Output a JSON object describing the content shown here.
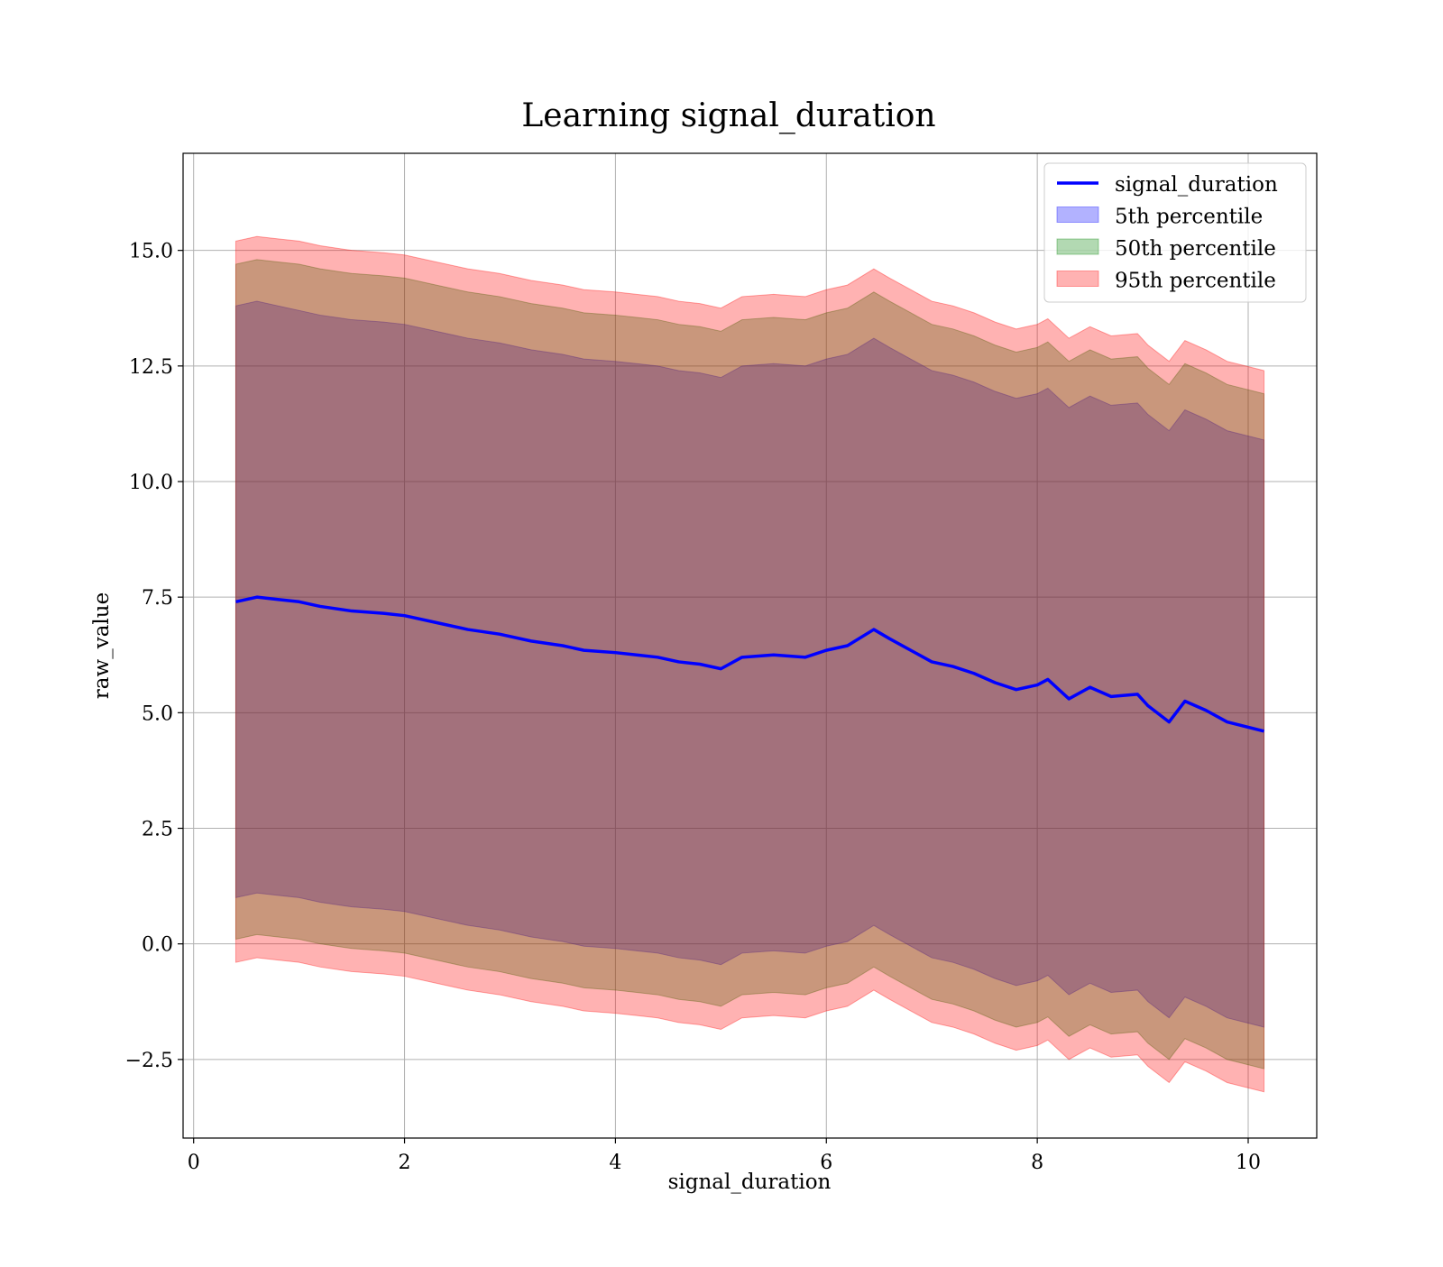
{
  "colors": {
    "mean_line": "#0000ff",
    "band_5th": "#0000ff",
    "band_50th": "#008000",
    "band_95th": "#ff0000",
    "grid": "#b0b0b0"
  },
  "chart_data": {
    "type": "line",
    "title": "Learning signal_duration",
    "xlabel": "signal_duration",
    "ylabel": "raw_value",
    "xlim": [
      -0.1,
      10.65
    ],
    "ylim": [
      -4.2,
      17.1
    ],
    "x_ticks": [
      0,
      2,
      4,
      6,
      8,
      10
    ],
    "x_tick_labels": [
      "0",
      "2",
      "4",
      "6",
      "8",
      "10"
    ],
    "y_ticks": [
      -2.5,
      0.0,
      2.5,
      5.0,
      7.5,
      10.0,
      12.5,
      15.0
    ],
    "y_tick_labels": [
      "−2.5",
      "0.0",
      "2.5",
      "5.0",
      "7.5",
      "10.0",
      "12.5",
      "15.0"
    ],
    "grid": true,
    "legend_position": "top-right",
    "legend": [
      "signal_duration",
      "5th percentile",
      "50th percentile",
      "95th percentile"
    ],
    "x": [
      0.4,
      0.6,
      0.8,
      1.0,
      1.2,
      1.5,
      1.8,
      2.0,
      2.3,
      2.6,
      2.9,
      3.2,
      3.5,
      3.7,
      4.0,
      4.2,
      4.4,
      4.6,
      4.8,
      5.0,
      5.2,
      5.5,
      5.8,
      6.0,
      6.2,
      6.45,
      6.6,
      6.8,
      7.0,
      7.2,
      7.4,
      7.6,
      7.8,
      8.0,
      8.1,
      8.3,
      8.5,
      8.7,
      8.95,
      9.05,
      9.25,
      9.4,
      9.6,
      9.8,
      10.15
    ],
    "series": [
      {
        "name": "signal_duration",
        "values": [
          7.4,
          7.5,
          7.45,
          7.4,
          7.3,
          7.2,
          7.15,
          7.1,
          6.95,
          6.8,
          6.7,
          6.55,
          6.45,
          6.35,
          6.3,
          6.25,
          6.2,
          6.1,
          6.05,
          5.95,
          6.2,
          6.25,
          6.2,
          6.35,
          6.45,
          6.8,
          6.6,
          6.35,
          6.1,
          6.0,
          5.85,
          5.65,
          5.5,
          5.6,
          5.72,
          5.3,
          5.55,
          5.35,
          5.4,
          5.15,
          4.8,
          5.25,
          5.05,
          4.8,
          4.6
        ]
      },
      {
        "name": "5th percentile",
        "upper": [
          13.8,
          13.9,
          13.8,
          13.7,
          13.6,
          13.5,
          13.45,
          13.4,
          13.25,
          13.1,
          13.0,
          12.85,
          12.75,
          12.65,
          12.6,
          12.55,
          12.5,
          12.4,
          12.35,
          12.25,
          12.5,
          12.55,
          12.5,
          12.65,
          12.75,
          13.1,
          12.9,
          12.65,
          12.4,
          12.3,
          12.15,
          11.95,
          11.8,
          11.9,
          12.02,
          11.6,
          11.85,
          11.65,
          11.7,
          11.45,
          11.1,
          11.55,
          11.35,
          11.1,
          10.9
        ],
        "lower": [
          1.0,
          1.1,
          1.05,
          1.0,
          0.9,
          0.8,
          0.75,
          0.7,
          0.55,
          0.4,
          0.3,
          0.15,
          0.05,
          -0.05,
          -0.1,
          -0.15,
          -0.2,
          -0.3,
          -0.35,
          -0.45,
          -0.2,
          -0.15,
          -0.2,
          -0.05,
          0.05,
          0.4,
          0.2,
          -0.05,
          -0.3,
          -0.4,
          -0.55,
          -0.75,
          -0.9,
          -0.8,
          -0.68,
          -1.1,
          -0.85,
          -1.05,
          -1.0,
          -1.25,
          -1.6,
          -1.15,
          -1.35,
          -1.6,
          -1.8
        ]
      },
      {
        "name": "50th percentile",
        "upper": [
          14.7,
          14.8,
          14.75,
          14.7,
          14.6,
          14.5,
          14.45,
          14.4,
          14.25,
          14.1,
          14.0,
          13.85,
          13.75,
          13.65,
          13.6,
          13.55,
          13.5,
          13.4,
          13.35,
          13.25,
          13.5,
          13.55,
          13.5,
          13.65,
          13.75,
          14.1,
          13.9,
          13.65,
          13.4,
          13.3,
          13.15,
          12.95,
          12.8,
          12.9,
          13.02,
          12.6,
          12.85,
          12.65,
          12.7,
          12.45,
          12.1,
          12.55,
          12.35,
          12.1,
          11.9
        ],
        "lower": [
          0.1,
          0.2,
          0.15,
          0.1,
          0.0,
          -0.1,
          -0.15,
          -0.2,
          -0.35,
          -0.5,
          -0.6,
          -0.75,
          -0.85,
          -0.95,
          -1.0,
          -1.05,
          -1.1,
          -1.2,
          -1.25,
          -1.35,
          -1.1,
          -1.05,
          -1.1,
          -0.95,
          -0.85,
          -0.5,
          -0.7,
          -0.95,
          -1.2,
          -1.3,
          -1.45,
          -1.65,
          -1.8,
          -1.7,
          -1.58,
          -2.0,
          -1.75,
          -1.95,
          -1.9,
          -2.15,
          -2.5,
          -2.05,
          -2.25,
          -2.5,
          -2.7
        ]
      },
      {
        "name": "95th percentile",
        "upper": [
          15.2,
          15.3,
          15.25,
          15.2,
          15.1,
          15.0,
          14.95,
          14.9,
          14.75,
          14.6,
          14.5,
          14.35,
          14.25,
          14.15,
          14.1,
          14.05,
          14.0,
          13.9,
          13.85,
          13.75,
          14.0,
          14.05,
          14.0,
          14.15,
          14.25,
          14.6,
          14.4,
          14.15,
          13.9,
          13.8,
          13.65,
          13.45,
          13.3,
          13.4,
          13.52,
          13.1,
          13.35,
          13.15,
          13.2,
          12.95,
          12.6,
          13.05,
          12.85,
          12.6,
          12.4
        ],
        "lower": [
          -0.4,
          -0.3,
          -0.35,
          -0.4,
          -0.5,
          -0.6,
          -0.65,
          -0.7,
          -0.85,
          -1.0,
          -1.1,
          -1.25,
          -1.35,
          -1.45,
          -1.5,
          -1.55,
          -1.6,
          -1.7,
          -1.75,
          -1.85,
          -1.6,
          -1.55,
          -1.6,
          -1.45,
          -1.35,
          -1.0,
          -1.2,
          -1.45,
          -1.7,
          -1.8,
          -1.95,
          -2.15,
          -2.3,
          -2.2,
          -2.08,
          -2.5,
          -2.25,
          -2.45,
          -2.4,
          -2.65,
          -3.0,
          -2.55,
          -2.75,
          -3.0,
          -3.2
        ]
      }
    ]
  }
}
